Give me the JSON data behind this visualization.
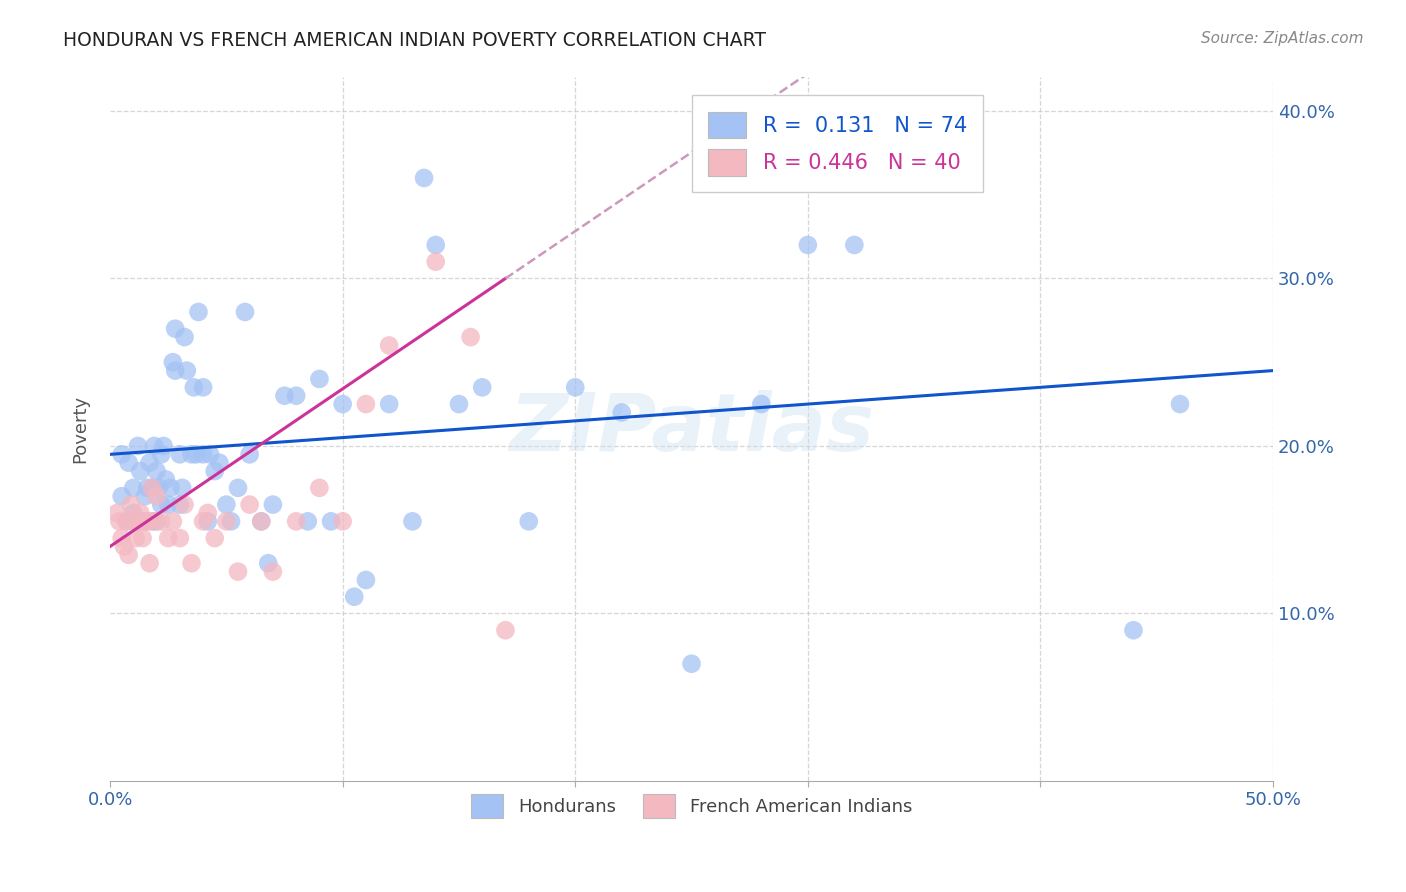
{
  "title": "HONDURAN VS FRENCH AMERICAN INDIAN POVERTY CORRELATION CHART",
  "source": "Source: ZipAtlas.com",
  "ylabel": "Poverty",
  "xlim": [
    0.0,
    0.5
  ],
  "ylim": [
    0.0,
    0.42
  ],
  "honduran_R": 0.131,
  "honduran_N": 74,
  "french_R": 0.446,
  "french_N": 40,
  "blue_scatter_color": "#a4c2f4",
  "pink_scatter_color": "#f4b8c1",
  "blue_line_color": "#1155cc",
  "pink_line_color": "#cc3399",
  "pink_dash_color": "#cc99bb",
  "honduran_x": [
    0.005,
    0.005,
    0.007,
    0.008,
    0.01,
    0.01,
    0.012,
    0.012,
    0.013,
    0.015,
    0.015,
    0.016,
    0.017,
    0.018,
    0.018,
    0.019,
    0.02,
    0.02,
    0.021,
    0.022,
    0.022,
    0.023,
    0.024,
    0.025,
    0.026,
    0.027,
    0.028,
    0.028,
    0.03,
    0.03,
    0.031,
    0.032,
    0.033,
    0.035,
    0.036,
    0.037,
    0.038,
    0.04,
    0.04,
    0.042,
    0.043,
    0.045,
    0.047,
    0.05,
    0.052,
    0.055,
    0.058,
    0.06,
    0.065,
    0.068,
    0.07,
    0.075,
    0.08,
    0.085,
    0.09,
    0.095,
    0.1,
    0.105,
    0.11,
    0.12,
    0.13,
    0.135,
    0.14,
    0.15,
    0.16,
    0.18,
    0.2,
    0.22,
    0.25,
    0.28,
    0.3,
    0.32,
    0.44,
    0.46
  ],
  "honduran_y": [
    0.195,
    0.17,
    0.155,
    0.19,
    0.16,
    0.175,
    0.155,
    0.2,
    0.185,
    0.155,
    0.17,
    0.175,
    0.19,
    0.155,
    0.175,
    0.2,
    0.155,
    0.185,
    0.175,
    0.165,
    0.195,
    0.2,
    0.18,
    0.165,
    0.175,
    0.25,
    0.245,
    0.27,
    0.165,
    0.195,
    0.175,
    0.265,
    0.245,
    0.195,
    0.235,
    0.195,
    0.28,
    0.195,
    0.235,
    0.155,
    0.195,
    0.185,
    0.19,
    0.165,
    0.155,
    0.175,
    0.28,
    0.195,
    0.155,
    0.13,
    0.165,
    0.23,
    0.23,
    0.155,
    0.24,
    0.155,
    0.225,
    0.11,
    0.12,
    0.225,
    0.155,
    0.36,
    0.32,
    0.225,
    0.235,
    0.155,
    0.235,
    0.22,
    0.07,
    0.225,
    0.32,
    0.32,
    0.09,
    0.225
  ],
  "french_x": [
    0.003,
    0.004,
    0.005,
    0.006,
    0.007,
    0.008,
    0.009,
    0.01,
    0.011,
    0.012,
    0.013,
    0.014,
    0.015,
    0.016,
    0.017,
    0.018,
    0.019,
    0.02,
    0.022,
    0.025,
    0.027,
    0.03,
    0.032,
    0.035,
    0.04,
    0.042,
    0.045,
    0.05,
    0.055,
    0.06,
    0.065,
    0.07,
    0.08,
    0.09,
    0.1,
    0.11,
    0.12,
    0.14,
    0.155,
    0.17
  ],
  "french_y": [
    0.16,
    0.155,
    0.145,
    0.14,
    0.155,
    0.135,
    0.165,
    0.155,
    0.145,
    0.155,
    0.16,
    0.145,
    0.155,
    0.155,
    0.13,
    0.175,
    0.155,
    0.17,
    0.155,
    0.145,
    0.155,
    0.145,
    0.165,
    0.13,
    0.155,
    0.16,
    0.145,
    0.155,
    0.125,
    0.165,
    0.155,
    0.125,
    0.155,
    0.175,
    0.155,
    0.225,
    0.26,
    0.31,
    0.265,
    0.09
  ],
  "legend_blue_R": "0.131",
  "legend_blue_N": "74",
  "legend_pink_R": "0.446",
  "legend_pink_N": "40",
  "watermark": "ZIPatlas",
  "background_color": "#ffffff"
}
